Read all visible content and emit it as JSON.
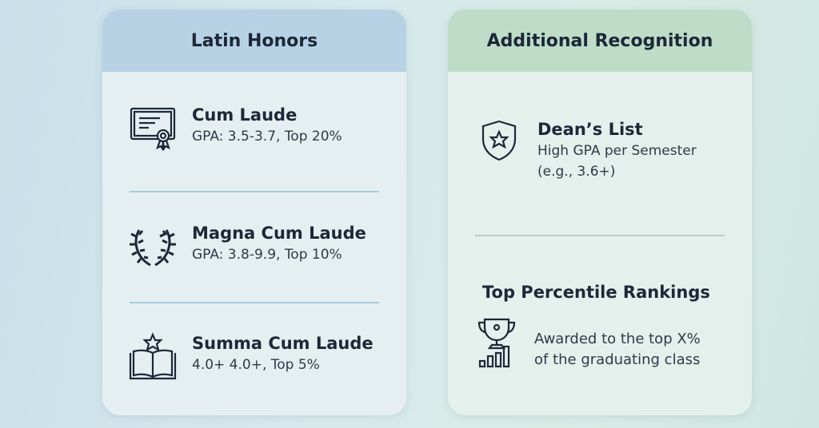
{
  "latin_honors": {
    "title": "Latin Honors",
    "items": [
      {
        "name": "Cum Laude",
        "detail": "GPA: 3.5-3.7, Top 20%",
        "icon": "certificate-icon"
      },
      {
        "name": "Magna Cum Laude",
        "detail": "GPA: 3.8-9.9, Top 10%",
        "icon": "laurel-wreath-icon"
      },
      {
        "name": "Summa Cum Laude",
        "detail": "4.0+ 4.0+, Top 5%",
        "icon": "book-star-icon"
      }
    ]
  },
  "additional": {
    "title": "Additional Recognition",
    "deans_list": {
      "name": "Dean’s List",
      "line1": "High GPA per Semester",
      "line2": "(e.g., 3.6+)",
      "icon": "shield-star-icon"
    },
    "top_percentile": {
      "name": "Top Percentile Rankings",
      "line1": "Awarded to the top X%",
      "line2": "of the graduating class",
      "icon": "trophy-chart-icon"
    }
  },
  "colors": {
    "latin_header": "#b7d2e5",
    "additional_header": "#bedcc8",
    "text": "#1c2838"
  }
}
